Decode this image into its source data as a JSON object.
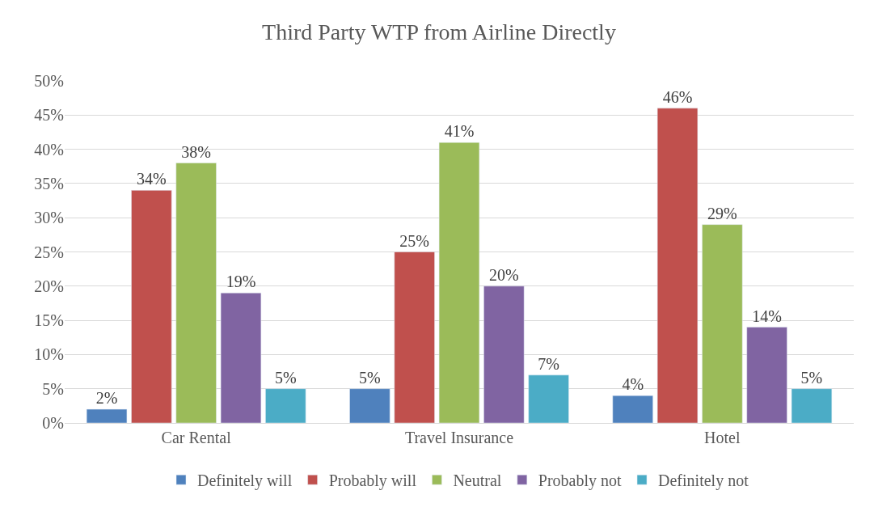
{
  "chart_data": {
    "type": "bar",
    "title": "Third Party WTP from Airline Directly",
    "categories": [
      "Car Rental",
      "Travel Insurance",
      "Hotel"
    ],
    "series": [
      {
        "name": "Definitely will",
        "color": "#4f81bd",
        "values": [
          2,
          5,
          4
        ],
        "value_labels": [
          "2%",
          "5%",
          "4%"
        ]
      },
      {
        "name": "Probably will",
        "color": "#c0504d",
        "values": [
          34,
          25,
          46
        ],
        "value_labels": [
          "34%",
          "25%",
          "46%"
        ]
      },
      {
        "name": "Neutral",
        "color": "#9bbb59",
        "values": [
          38,
          41,
          29
        ],
        "value_labels": [
          "38%",
          "41%",
          "29%"
        ]
      },
      {
        "name": "Probably not",
        "color": "#8064a2",
        "values": [
          19,
          20,
          14
        ],
        "value_labels": [
          "19%",
          "20%",
          "14%"
        ]
      },
      {
        "name": "Definitely not",
        "color": "#4bacc6",
        "values": [
          5,
          7,
          5
        ],
        "value_labels": [
          "5%",
          "7%",
          "5%"
        ]
      }
    ],
    "ylim": [
      0,
      50
    ],
    "yticks": [
      {
        "value": 0,
        "label": "0%"
      },
      {
        "value": 5,
        "label": "5%"
      },
      {
        "value": 10,
        "label": "10%"
      },
      {
        "value": 15,
        "label": "15%"
      },
      {
        "value": 20,
        "label": "20%"
      },
      {
        "value": 25,
        "label": "25%"
      },
      {
        "value": 30,
        "label": "30%"
      },
      {
        "value": 35,
        "label": "35%"
      },
      {
        "value": 40,
        "label": "40%"
      },
      {
        "value": 45,
        "label": "45%"
      },
      {
        "value": 50,
        "label": "50%"
      }
    ],
    "grid": "y",
    "legend": "bottom"
  }
}
